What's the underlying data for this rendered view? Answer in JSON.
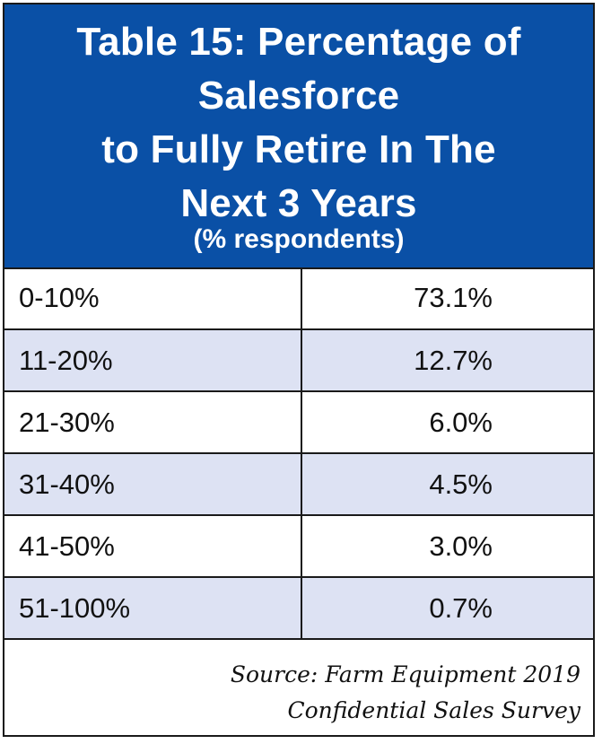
{
  "chart_data": {
    "type": "table",
    "title_lines": [
      "Table 15: Percentage of",
      "Salesforce",
      "to Fully Retire In The",
      "Next 3 Years"
    ],
    "subtitle": "(% respondents)",
    "rows": [
      {
        "category": "0-10%",
        "value_label": "73.1%",
        "value": 73.1
      },
      {
        "category": "11-20%",
        "value_label": "12.7%",
        "value": 12.7
      },
      {
        "category": "21-30%",
        "value_label": "6.0%",
        "value": 6.0
      },
      {
        "category": "31-40%",
        "value_label": "4.5%",
        "value": 4.5
      },
      {
        "category": "41-50%",
        "value_label": "3.0%",
        "value": 3.0
      },
      {
        "category": "51-100%",
        "value_label": "0.7%",
        "value": 0.7
      }
    ],
    "source_lines": [
      "Source: Farm Equipment 2019",
      "Confidential Sales Survey"
    ]
  },
  "colors": {
    "header_bg": "#0a50a6",
    "header_text": "#ffffff",
    "shaded_row_bg": "#dde2f3",
    "border": "#1a1a1a"
  }
}
